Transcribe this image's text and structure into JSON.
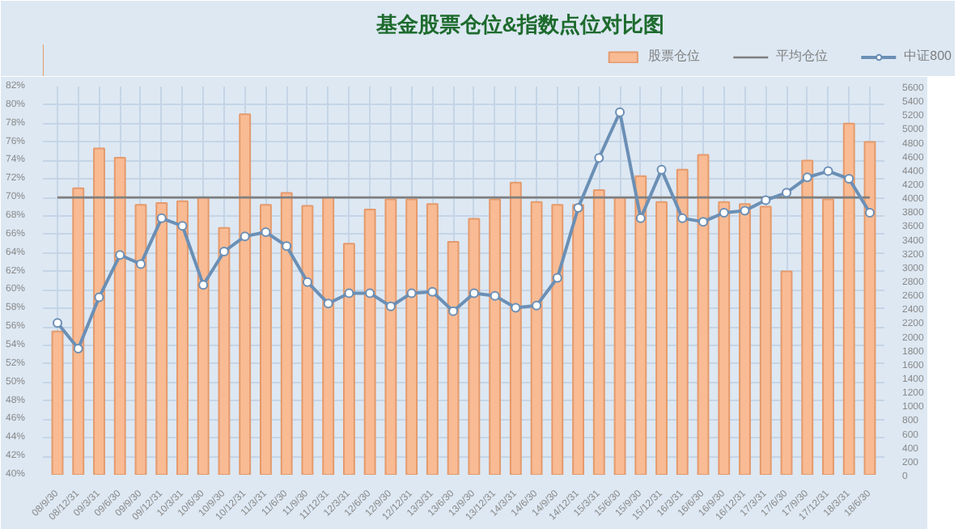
{
  "chart_data": {
    "type": "bar",
    "title": "基金股票仓位&指数点位对比图",
    "categories": [
      "08/9/30",
      "08/12/31",
      "09/3/31",
      "09/6/30",
      "09/9/30",
      "09/12/31",
      "10/3/31",
      "10/6/30",
      "10/9/30",
      "10/12/31",
      "11/3/31",
      "11/6/30",
      "11/9/30",
      "11/12/31",
      "12/3/31",
      "12/6/30",
      "12/9/30",
      "12/12/31",
      "13/3/31",
      "13/6/30",
      "13/9/30",
      "13/12/31",
      "14/3/31",
      "14/6/30",
      "14/9/30",
      "14/12/31",
      "15/3/31",
      "15/6/30",
      "15/9/30",
      "15/12/31",
      "16/3/31",
      "16/6/30",
      "16/9/30",
      "16/12/31",
      "17/3/31",
      "17/6/30",
      "17/9/30",
      "17/12/31",
      "18/3/31",
      "18/6/30"
    ],
    "series": [
      {
        "name": "股票仓位",
        "color": "#f8bb94",
        "values": [
          55.5,
          71,
          75.3,
          74.3,
          69.2,
          69.4,
          69.6,
          70,
          66.7,
          79,
          69.2,
          70.5,
          69.1,
          70,
          65,
          68.7,
          69.8,
          69.8,
          69.3,
          65.2,
          67.7,
          69.8,
          71.6,
          69.5,
          69.2,
          69.2,
          70.8,
          70,
          72.3,
          69.5,
          73,
          74.6,
          69.5,
          69.3,
          69,
          62,
          74,
          69.8,
          78,
          76
        ]
      },
      {
        "name": "平均仓位",
        "type": "line",
        "color": "#7f7f7f",
        "marker": "none",
        "values": [
          70,
          70,
          70,
          70,
          70,
          70,
          70,
          70,
          70,
          70,
          70,
          70,
          70,
          70,
          70,
          70,
          70,
          70,
          70,
          70,
          70,
          70,
          70,
          70,
          70,
          70,
          70,
          70,
          70,
          70,
          70,
          70,
          70,
          70,
          70,
          70,
          70,
          70,
          70,
          70
        ]
      },
      {
        "name": "中证800",
        "type": "line",
        "color": "#6b8fb5",
        "marker": "circle",
        "axis": "y2",
        "values": [
          2190,
          1820,
          2560,
          3170,
          3040,
          3700,
          3590,
          2740,
          3220,
          3440,
          3500,
          3300,
          2780,
          2470,
          2620,
          2620,
          2430,
          2620,
          2640,
          2360,
          2620,
          2580,
          2410,
          2440,
          2840,
          3850,
          4570,
          5230,
          3700,
          4400,
          3700,
          3650,
          3780,
          3810,
          3960,
          4070,
          4290,
          4380,
          4270,
          3780
        ]
      }
    ],
    "ylim": [
      40,
      82
    ],
    "yticks": [
      {
        "value": 40,
        "label": "40%"
      },
      {
        "value": 42,
        "label": "42%"
      },
      {
        "value": 44,
        "label": "44%"
      },
      {
        "value": 46,
        "label": "46%"
      },
      {
        "value": 48,
        "label": "48%"
      },
      {
        "value": 50,
        "label": "50%"
      },
      {
        "value": 52,
        "label": "52%"
      },
      {
        "value": 54,
        "label": "54%"
      },
      {
        "value": 56,
        "label": "56%"
      },
      {
        "value": 58,
        "label": "58%"
      },
      {
        "value": 60,
        "label": "60%"
      },
      {
        "value": 62,
        "label": "62%"
      },
      {
        "value": 64,
        "label": "64%"
      },
      {
        "value": 66,
        "label": "66%"
      },
      {
        "value": 68,
        "label": "68%"
      },
      {
        "value": 70,
        "label": "70%"
      },
      {
        "value": 72,
        "label": "72%"
      },
      {
        "value": 74,
        "label": "74%"
      },
      {
        "value": 76,
        "label": "76%"
      },
      {
        "value": 78,
        "label": "78%"
      },
      {
        "value": 80,
        "label": "80%"
      },
      {
        "value": 82,
        "label": "82%"
      }
    ],
    "y2lim": [
      0,
      5600
    ],
    "y2ticks": [
      0,
      200,
      400,
      600,
      800,
      1000,
      1200,
      1400,
      1600,
      1800,
      2000,
      2200,
      2400,
      2600,
      2800,
      3000,
      3200,
      3400,
      3600,
      3800,
      4000,
      4200,
      4400,
      4600,
      4800,
      5000,
      5200,
      5400,
      5600
    ],
    "grid": true,
    "legend": "top right"
  }
}
